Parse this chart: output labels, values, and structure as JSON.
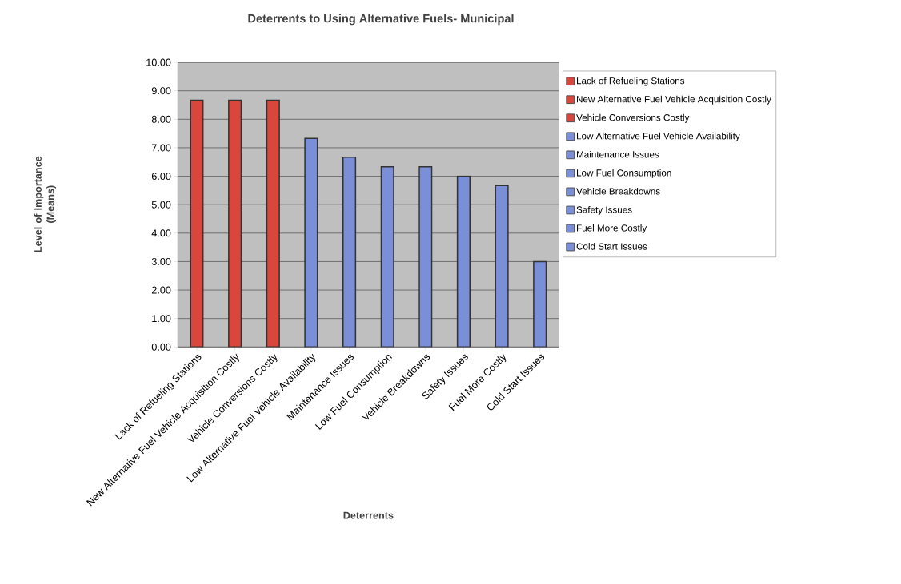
{
  "chart_data": {
    "type": "bar",
    "title": "Deterrents to Using Alternative Fuels- Municipal",
    "xlabel": "Deterrents",
    "ylabel": "Level of Importance\n(Means)",
    "categories": [
      "Lack of Refueling Stations",
      "New Alternative Fuel Vehicle Acquisition Costly",
      "Vehicle Conversions Costly",
      "Low Alternative Fuel Vehicle Availability",
      "Maintenance Issues",
      "Low Fuel Consumption",
      "Vehicle Breakdowns",
      "Safety Issues",
      "Fuel More Costly",
      "Cold Start Issues"
    ],
    "series": [
      {
        "name": "Lack of Refueling Stations",
        "color": "#d9463c",
        "values": [
          8.67,
          null,
          null,
          null,
          null,
          null,
          null,
          null,
          null,
          null
        ]
      },
      {
        "name": "New Alternative Fuel Vehicle Acquisition Costly",
        "color": "#d9463c",
        "values": [
          null,
          8.67,
          null,
          null,
          null,
          null,
          null,
          null,
          null,
          null
        ]
      },
      {
        "name": "Vehicle Conversions Costly",
        "color": "#d9463c",
        "values": [
          null,
          null,
          8.67,
          null,
          null,
          null,
          null,
          null,
          null,
          null
        ]
      },
      {
        "name": "Low Alternative Fuel Vehicle Availability",
        "color": "#7b8fd9",
        "values": [
          null,
          null,
          null,
          7.33,
          null,
          null,
          null,
          null,
          null,
          null
        ]
      },
      {
        "name": "Maintenance Issues",
        "color": "#7b8fd9",
        "values": [
          null,
          null,
          null,
          null,
          6.67,
          null,
          null,
          null,
          null,
          null
        ]
      },
      {
        "name": "Low Fuel Consumption",
        "color": "#7b8fd9",
        "values": [
          null,
          null,
          null,
          null,
          null,
          6.33,
          null,
          null,
          null,
          null
        ]
      },
      {
        "name": "Vehicle Breakdowns",
        "color": "#7b8fd9",
        "values": [
          null,
          null,
          null,
          null,
          null,
          null,
          6.33,
          null,
          null,
          null
        ]
      },
      {
        "name": "Safety Issues",
        "color": "#7b8fd9",
        "values": [
          null,
          null,
          null,
          null,
          null,
          null,
          null,
          6.0,
          null,
          null
        ]
      },
      {
        "name": "Fuel More Costly",
        "color": "#7b8fd9",
        "values": [
          null,
          null,
          null,
          null,
          null,
          null,
          null,
          null,
          5.67,
          null
        ]
      },
      {
        "name": "Cold Start Issues",
        "color": "#7b8fd9",
        "values": [
          null,
          null,
          null,
          null,
          null,
          null,
          null,
          null,
          null,
          3.0
        ]
      }
    ],
    "ylim": [
      0,
      10
    ],
    "yticks": [
      {
        "value": 0,
        "label": "0.00"
      },
      {
        "value": 1,
        "label": "1.00"
      },
      {
        "value": 2,
        "label": "2.00"
      },
      {
        "value": 3,
        "label": "3.00"
      },
      {
        "value": 4,
        "label": "4.00"
      },
      {
        "value": 5,
        "label": "5.00"
      },
      {
        "value": 6,
        "label": "6.00"
      },
      {
        "value": 7,
        "label": "7.00"
      },
      {
        "value": 8,
        "label": "8.00"
      },
      {
        "value": 9,
        "label": "9.00"
      },
      {
        "value": 10,
        "label": "10.00"
      }
    ],
    "grid": "y",
    "legend": "right"
  }
}
